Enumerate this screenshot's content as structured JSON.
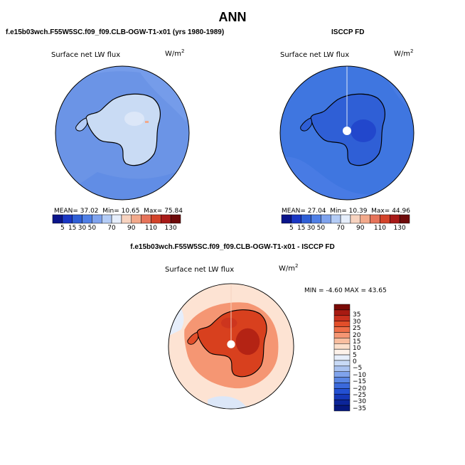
{
  "title": "ANN",
  "panels": [
    {
      "caption": "f.e15b03wch.F55W5SC.f09_f09.CLB-OGW-T1-x01 (yrs 1980-1989)",
      "variable": "Surface net LW flux",
      "units": "W/m",
      "units_exp": "2",
      "stats": {
        "mean_label": "MEAN=",
        "mean": "37.02",
        "min_label": "Min=",
        "min": "10.65",
        "max_label": "Max=",
        "max": "75.84"
      },
      "ocean_color": "#6b94e6",
      "land_color": "#c9dbf4"
    },
    {
      "caption": "ISCCP FD",
      "variable": "Surface net LW flux",
      "units": "W/m",
      "units_exp": "2",
      "stats": {
        "mean_label": "MEAN=",
        "mean": "27.04",
        "min_label": "Min=",
        "min": "10.39",
        "max_label": "Max=",
        "max": "44.96"
      },
      "ocean_color": "#3f76e0",
      "land_color": "#2f5fd6"
    },
    {
      "caption": "f.e15b03wch.F55W5SC.f09_f09.CLB-OGW-T1-x01 - ISCCP FD",
      "variable": "Surface net LW flux",
      "units": "W/m",
      "units_exp": "2",
      "stats_text": "MIN =  -4.60 MAX =  43.65",
      "ocean_color": "#fde3d3",
      "land_color": "#d8401e"
    }
  ],
  "colorbar_h": {
    "colors": [
      "#0a148a",
      "#1a37c4",
      "#2f5fd6",
      "#4f7fe6",
      "#7fa3ee",
      "#b4ccf6",
      "#e6eefb",
      "#f7d3c0",
      "#f2a98b",
      "#e6735a",
      "#d3432a",
      "#a81a18",
      "#6e0a0a"
    ],
    "labels": [
      "5",
      "15",
      "30",
      "50",
      "70",
      "90",
      "110",
      "130"
    ]
  },
  "colorbar_v": {
    "colors": [
      "#7a0a06",
      "#a81a12",
      "#c9301e",
      "#e24e2a",
      "#ef6e48",
      "#f59673",
      "#f9be9f",
      "#fce0cc",
      "#fdf2ea",
      "#e6eefb",
      "#c8daf6",
      "#a9c2f0",
      "#7fa3ec",
      "#5a86e4",
      "#3b69db",
      "#2350d2",
      "#1538b8",
      "#0c2599",
      "#061880"
    ],
    "labels": [
      "35",
      "30",
      "25",
      "20",
      "15",
      "10",
      "5",
      "0",
      "−5",
      "−10",
      "−15",
      "−20",
      "−25",
      "−30",
      "−35"
    ]
  }
}
